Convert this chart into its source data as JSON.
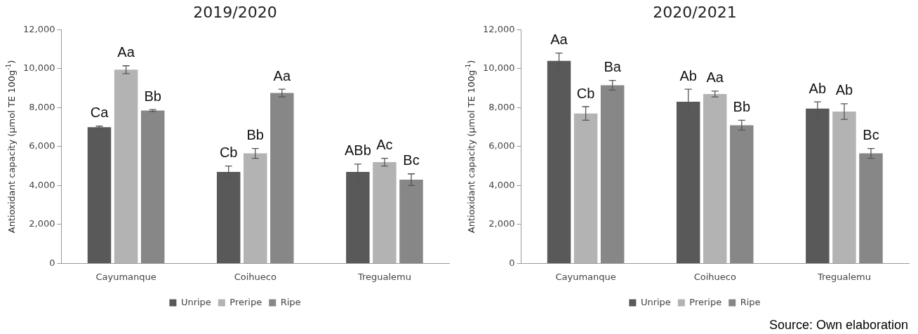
{
  "chart_data": [
    {
      "type": "bar",
      "title": "2019/2020",
      "ylabel": "Antioxidant capacity (µmol TE 100g$^{-1}$)",
      "categories": [
        "Cayumanque",
        "Coihueco",
        "Tregualemu"
      ],
      "series": [
        {
          "name": "Unripe",
          "color": "#595959",
          "values": [
            7000,
            4700,
            4700
          ],
          "errors": [
            50,
            300,
            400
          ],
          "value_labels": [
            "Ca",
            "Cb",
            "ABb"
          ]
        },
        {
          "name": "Preripe",
          "color": "#b3b3b3",
          "values": [
            9950,
            5650,
            5200
          ],
          "errors": [
            200,
            250,
            200
          ],
          "value_labels": [
            "Aa",
            "Bb",
            "Ac"
          ]
        },
        {
          "name": "Ripe",
          "color": "#878787",
          "values": [
            7850,
            8750,
            4300
          ],
          "errors": [
            50,
            200,
            300
          ],
          "value_labels": [
            "Bb",
            "Aa",
            "Bc"
          ]
        }
      ],
      "ylim": [
        0,
        12000
      ],
      "yticks": [
        0,
        {
          "value": 2000,
          "label": "2,000"
        },
        {
          "value": 4000,
          "label": "4,000"
        },
        {
          "value": 6000,
          "label": "6,000"
        },
        {
          "value": 8000,
          "label": "8,000"
        },
        {
          "value": 10000,
          "label": "10,000"
        },
        {
          "value": 12000,
          "label": "12,000"
        }
      ],
      "grid": false,
      "legend": "bottom"
    },
    {
      "type": "bar",
      "title": "2020/2021",
      "ylabel": "Antioxidant capacity (µmol TE 100g$^{-1}$)",
      "categories": [
        "Cayumanque",
        "Coihueco",
        "Tregualemu"
      ],
      "series": [
        {
          "name": "Unripe",
          "color": "#595959",
          "values": [
            10400,
            8300,
            7950
          ],
          "errors": [
            400,
            650,
            350
          ],
          "value_labels": [
            "Aa",
            "Ab",
            "Ab"
          ]
        },
        {
          "name": "Preripe",
          "color": "#b3b3b3",
          "values": [
            7700,
            8700,
            7800
          ],
          "errors": [
            350,
            150,
            400
          ],
          "value_labels": [
            "Cb",
            "Aa",
            "Ab"
          ]
        },
        {
          "name": "Ripe",
          "color": "#878787",
          "values": [
            9150,
            7100,
            5650
          ],
          "errors": [
            250,
            250,
            250
          ],
          "value_labels": [
            "Ba",
            "Bb",
            "Bc"
          ]
        }
      ],
      "ylim": [
        0,
        12000
      ],
      "yticks": [
        0,
        {
          "value": 2000,
          "label": "2,000"
        },
        {
          "value": 4000,
          "label": "4,000"
        },
        {
          "value": 6000,
          "label": "6,000"
        },
        {
          "value": 8000,
          "label": "8,000"
        },
        {
          "value": 10000,
          "label": "10,000"
        },
        {
          "value": 12000,
          "label": "12,000"
        }
      ],
      "grid": false,
      "legend": "bottom",
      "annotations": [
        "Source: Own elaboration"
      ]
    }
  ]
}
